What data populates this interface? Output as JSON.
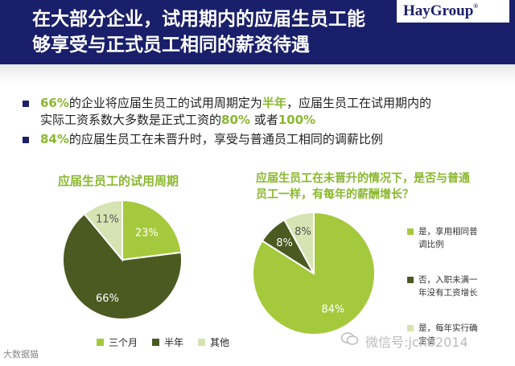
{
  "header": {
    "title_line1": "在大部分企业，试用期内的应届生员工能",
    "title_line2": "够享受与正式员工相同的薪资待遇",
    "logo": "HayGroup",
    "logo_mark": "®"
  },
  "bullets": [
    {
      "parts": [
        "66%",
        "的企业将应届生员工的试用周期定为",
        "半年",
        "，应届生员工在试用期内的"
      ],
      "parts2": [
        "实际工资系数大多数是正式工资的",
        "80%",
        " 或者",
        "100%"
      ]
    },
    {
      "parts": [
        "84%",
        "的应届生员工在未晋升时，享受与普通员工相同的调薪比例"
      ]
    }
  ],
  "colors": {
    "light_green": "#a5c93c",
    "dark_olive": "#4b5a21",
    "pale_green": "#d6e3b2",
    "navy": "#1a1f6b",
    "accent": "#8ab82e"
  },
  "watermark": {
    "left": "大数据猫",
    "right": "微信号:jcnb2014"
  },
  "chart_data": [
    {
      "type": "pie",
      "title": "应届生员工的试用周期",
      "slices": [
        {
          "label": "三个月",
          "value": 23,
          "text": "23%",
          "color": "#a5c93c"
        },
        {
          "label": "半年",
          "value": 66,
          "text": "66%",
          "color": "#4b5a21"
        },
        {
          "label": "其他",
          "value": 11,
          "text": "11%",
          "color": "#d6e3b2"
        }
      ],
      "legend_position": "bottom"
    },
    {
      "type": "pie",
      "title_line1": "应届生员工在未晋升的情况下，是否与普通",
      "title_line2": "员工一样，有每年的薪酬增长？",
      "slices": [
        {
          "label": "是，享用相同普调比例",
          "label_lines": [
            "是，享用相同普",
            "调比例"
          ],
          "value": 84,
          "text": "84%",
          "color": "#a5c93c"
        },
        {
          "label": "否，入职未满一年没有工资增长",
          "label_lines": [
            "否，入职未满一",
            "年没有工资增长"
          ],
          "value": 8,
          "text": "8%",
          "color": "#4b5a21"
        },
        {
          "label": "是，每年实行确定值",
          "label_lines": [
            "是，每年实行确",
            "定值"
          ],
          "value": 8,
          "text": "8%",
          "color": "#d6e3b2"
        }
      ],
      "legend_position": "right"
    }
  ]
}
